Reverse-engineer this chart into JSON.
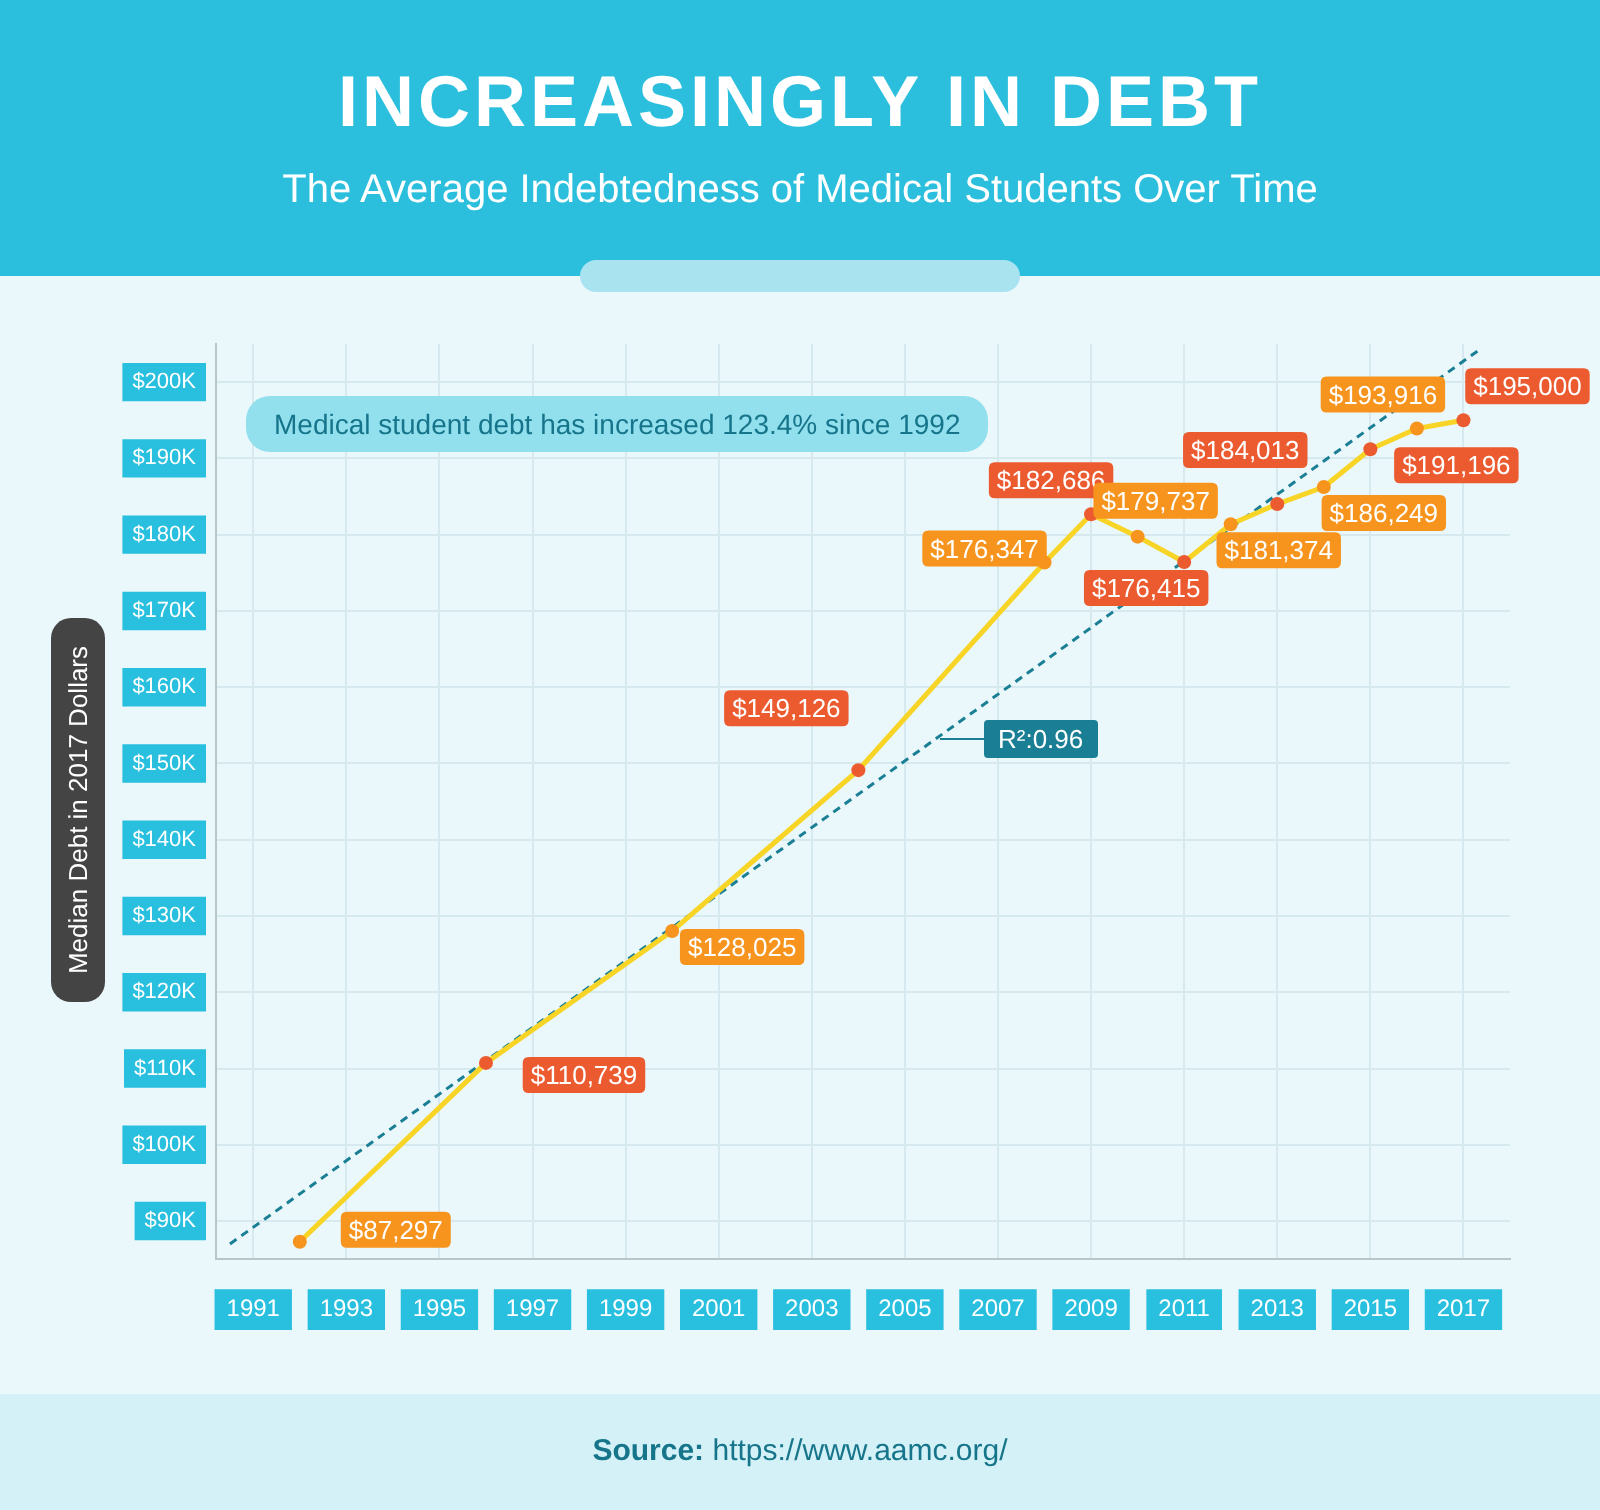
{
  "chart_data": {
    "type": "line",
    "title": "INCREASINGLY IN DEBT",
    "subtitle": "The Average Indebtedness of Medical Students Over Time",
    "ylabel": "Median Debt in 2017 Dollars",
    "annotations": [
      "Medical student debt has increased 123.4% since 1992",
      "R²:0.96",
      "Source: https://www.aamc.org/"
    ],
    "x": [
      1992,
      1996,
      2000,
      2004,
      2008,
      2009,
      2010,
      2011,
      2012,
      2013,
      2014,
      2015,
      2016,
      2017
    ],
    "series": [
      {
        "color": "#f7d425",
        "values": [
          87297,
          110739,
          128025,
          149126,
          176347,
          182686,
          179737,
          176415,
          181374,
          184013,
          186249,
          191196,
          193916,
          195000
        ],
        "colors": [
          "#f7941d",
          "#ec5a2f",
          "#f7941d",
          "#ec5a2f",
          "#f7941d",
          "#ec5a2f",
          "#f7941d",
          "#ec5a2f",
          "#f7941d",
          "#ec5a2f",
          "#f7941d",
          "#ec5a2f",
          "#f7941d",
          "#ec5a2f"
        ],
        "value_labels": [
          "$87,297",
          "$110,739",
          "$128,025",
          "$149,126",
          "$176,347",
          "$182,686",
          "$179,737",
          "$176,415",
          "$181,374",
          "$184,013",
          "$186,249",
          "$191,196",
          "$193,916",
          "$195,000"
        ],
        "marker": "circle"
      },
      {
        "type": "line",
        "x": [
          1990.5,
          2017.4
        ],
        "values": [
          87000,
          204500
        ],
        "color": "#1a7f94",
        "line_style": "dashed",
        "marker": "none"
      }
    ],
    "xlim": [
      1990.2,
      2018
    ],
    "ylim": [
      85000,
      205000
    ],
    "xticks": [
      1991,
      1993,
      1995,
      1997,
      1999,
      2001,
      2003,
      2005,
      2007,
      2009,
      2011,
      2013,
      2015,
      2017
    ],
    "yticks": [
      {
        "value": 90000,
        "label": "$90K"
      },
      {
        "value": 100000,
        "label": "$100K"
      },
      {
        "value": 110000,
        "label": "$110K"
      },
      {
        "value": 120000,
        "label": "$120K"
      },
      {
        "value": 130000,
        "label": "$130K"
      },
      {
        "value": 140000,
        "label": "$140K"
      },
      {
        "value": 150000,
        "label": "$150K"
      },
      {
        "value": 160000,
        "label": "$160K"
      },
      {
        "value": 170000,
        "label": "$170K"
      },
      {
        "value": 180000,
        "label": "$180K"
      },
      {
        "value": 190000,
        "label": "$190K"
      },
      {
        "value": 200000,
        "label": "$200K"
      }
    ],
    "grid": true,
    "legend": false
  }
}
